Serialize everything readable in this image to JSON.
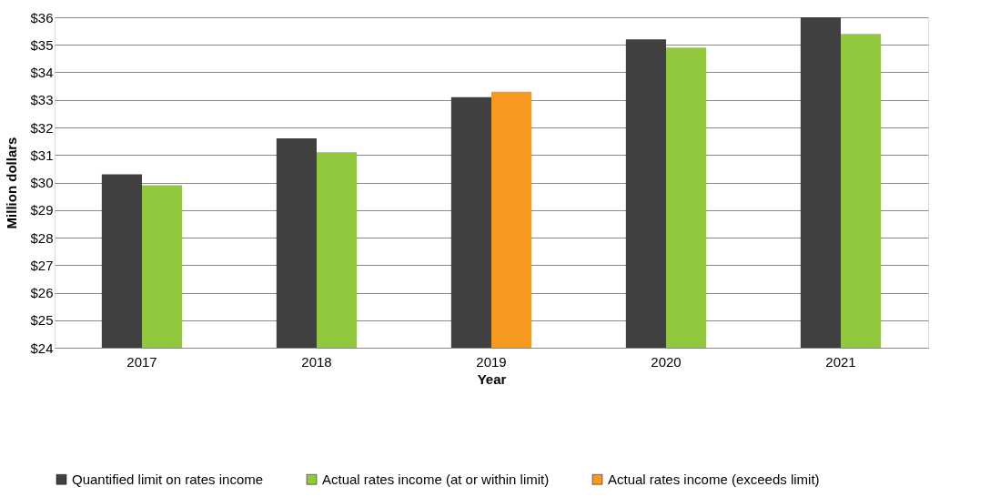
{
  "chart_data": {
    "type": "bar",
    "xlabel": "Year",
    "ylabel": "Million dollars",
    "categories": [
      "2017",
      "2018",
      "2019",
      "2020",
      "2021"
    ],
    "series": [
      {
        "name": "Quantified limit on rates income",
        "color": "#404040",
        "values": [
          30.3,
          31.6,
          33.1,
          35.2,
          36.0
        ]
      },
      {
        "name": "Actual rates income (at or within limit)",
        "color": "#92c83e",
        "values": [
          29.9,
          31.1,
          null,
          34.9,
          35.4
        ]
      },
      {
        "name": "Actual rates income (exceeds limit)",
        "color": "#f7991f",
        "values": [
          null,
          null,
          33.3,
          null,
          null
        ]
      }
    ],
    "ylim": [
      24,
      36
    ],
    "yticks": [
      {
        "value": 24,
        "label": "$24"
      },
      {
        "value": 25,
        "label": "$25"
      },
      {
        "value": 26,
        "label": "$26"
      },
      {
        "value": 27,
        "label": "$27"
      },
      {
        "value": 28,
        "label": "$28"
      },
      {
        "value": 29,
        "label": "$29"
      },
      {
        "value": 30,
        "label": "$30"
      },
      {
        "value": 31,
        "label": "$31"
      },
      {
        "value": 32,
        "label": "$32"
      },
      {
        "value": 33,
        "label": "$33"
      },
      {
        "value": 34,
        "label": "$34"
      },
      {
        "value": 35,
        "label": "$35"
      },
      {
        "value": 36,
        "label": "$36"
      }
    ],
    "grid": "y",
    "legend": "bottom"
  }
}
